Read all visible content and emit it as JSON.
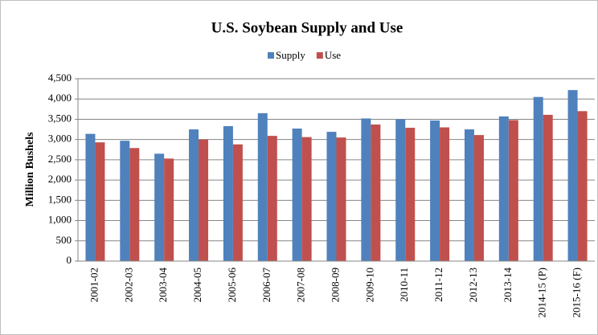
{
  "chart_data": {
    "type": "bar",
    "title": "U.S. Soybean Supply and Use",
    "y_label": "Million Bushels",
    "categories": [
      "2001-02",
      "2002-03",
      "2003-04",
      "2004-05",
      "2005-06",
      "2006-07",
      "2007-08",
      "2008-09",
      "2009-10",
      "2010-11",
      "2011-12",
      "2012-13",
      "2013-14",
      "2014-15 (P)",
      "2015-16 (F)"
    ],
    "series": [
      {
        "name": "Supply",
        "color": "#4f81bd",
        "values": [
          3140,
          2970,
          2650,
          3250,
          3330,
          3650,
          3270,
          3190,
          3520,
          3500,
          3470,
          3250,
          3570,
          4050,
          4220
        ]
      },
      {
        "name": "Use",
        "color": "#c0504d",
        "values": [
          2930,
          2790,
          2530,
          3000,
          2880,
          3090,
          3060,
          3050,
          3370,
          3290,
          3300,
          3110,
          3480,
          3610,
          3700
        ]
      }
    ],
    "ylim": [
      0,
      4500
    ],
    "yticks": [
      0,
      500,
      {
        "value": 1000,
        "label": "1,000"
      },
      {
        "value": 1500,
        "label": "1,500"
      },
      {
        "value": 2000,
        "label": "2,000"
      },
      {
        "value": 2500,
        "label": "2,500"
      },
      {
        "value": 3000,
        "label": "3,000"
      },
      {
        "value": 3500,
        "label": "3,500"
      },
      {
        "value": 4000,
        "label": "4,000"
      },
      {
        "value": 4500,
        "label": "4,500"
      }
    ],
    "grid": true,
    "legend": "top"
  }
}
